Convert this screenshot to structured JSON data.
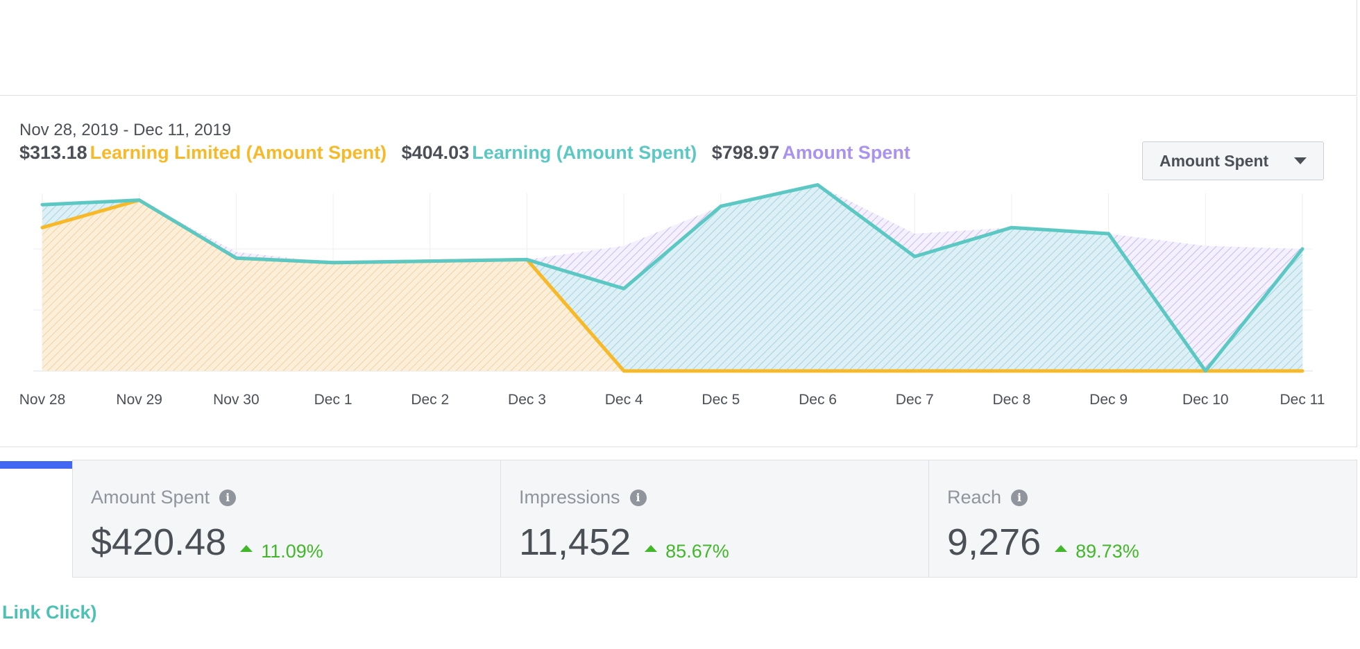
{
  "chart_header": {
    "date_range": "Nov 28, 2019 - Dec 11, 2019",
    "legend": [
      {
        "value": "$313.18",
        "name": "Learning Limited (Amount Spent)",
        "color": "#f7b928"
      },
      {
        "value": "$404.03",
        "name": "Learning (Amount Spent)",
        "color": "#5bc8c3"
      },
      {
        "value": "$798.97",
        "name": "Amount Spent",
        "color": "#a992f0"
      }
    ]
  },
  "dropdown": {
    "selected": "Amount Spent",
    "icon": "caret-down-icon"
  },
  "colors": {
    "learning_limited": "#f7b928",
    "learning": "#5bc8c3",
    "total": "#a992f0",
    "progress": "#4267f2",
    "positive": "#42b72a"
  },
  "chart_data": {
    "type": "area",
    "categories": [
      "Nov 28",
      "Nov 29",
      "Nov 30",
      "Dec 1",
      "Dec 2",
      "Dec 3",
      "Dec 4",
      "Dec 5",
      "Dec 6",
      "Dec 7",
      "Dec 8",
      "Dec 9",
      "Dec 10",
      "Dec 11"
    ],
    "series": [
      {
        "name": "Learning Limited (Amount Spent)",
        "color": "#f7b928",
        "values": [
          47,
          56,
          37,
          35.5,
          36,
          36.5,
          0,
          0,
          0,
          0,
          0,
          0,
          0,
          0
        ]
      },
      {
        "name": "Learning (Amount Spent)",
        "color": "#5bc8c3",
        "values": [
          54.5,
          56,
          37,
          35.5,
          36,
          36.5,
          27,
          54,
          61,
          37.5,
          47,
          45,
          0,
          40
        ]
      },
      {
        "name": "Amount Spent",
        "color": "#a992f0",
        "values": [
          54.5,
          56,
          39,
          35.5,
          36,
          36.5,
          41,
          54,
          61,
          45,
          47,
          45,
          41,
          40
        ]
      }
    ],
    "ylim": [
      0,
      60
    ],
    "y_ticks_shown": false,
    "grid": true
  },
  "stats": [
    {
      "title": "Amount Spent",
      "value": "$420.48",
      "change": "11.09%",
      "icon": "info-icon"
    },
    {
      "title": "Impressions",
      "value": "11,452",
      "change": "85.67%",
      "icon": "info-icon"
    },
    {
      "title": "Reach",
      "value": "9,276",
      "change": "89.73%",
      "icon": "info-icon"
    }
  ],
  "footer": {
    "label": "Link Click)"
  }
}
